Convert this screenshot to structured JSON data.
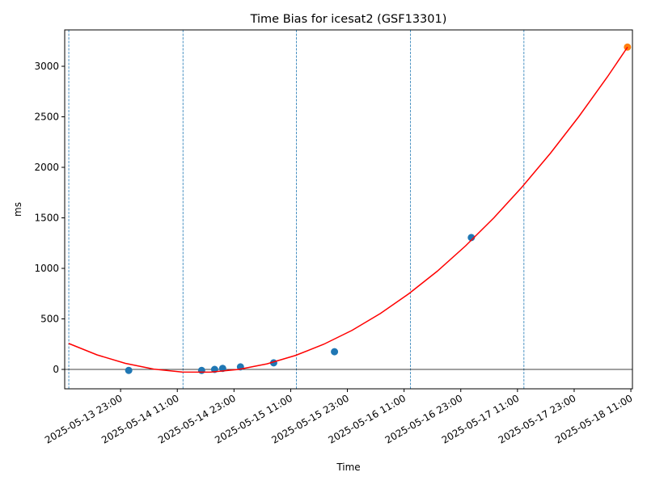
{
  "chart_data": {
    "type": "scatter",
    "title": "Time Bias for icesat2 (GSF13301)",
    "x_label": "Time",
    "y_label": "ms",
    "xlim": [
      "2025-05-13 11:10",
      "2025-05-18 11:20"
    ],
    "xticks": [
      "2025-05-13 23:00",
      "2025-05-14 11:00",
      "2025-05-14 23:00",
      "2025-05-15 11:00",
      "2025-05-15 23:00",
      "2025-05-16 11:00",
      "2025-05-16 23:00",
      "2025-05-17 11:00",
      "2025-05-17 23:00",
      "2025-05-18 11:00"
    ],
    "ylim": [
      -192,
      3360
    ],
    "yticks": [
      0,
      500,
      1000,
      1500,
      2000,
      2500,
      3000
    ],
    "hline": 0,
    "vlines": [
      "2025-05-13 12:02",
      "2025-05-14 12:12",
      "2025-05-15 12:12",
      "2025-05-16 12:22",
      "2025-05-17 12:22"
    ],
    "series": [
      {
        "color": "#1f77b4",
        "x": [
          "2025-05-14 00:43",
          "2025-05-14 16:09",
          "2025-05-14 18:54",
          "2025-05-14 20:36",
          "2025-05-15 00:22",
          "2025-05-15 07:24",
          "2025-05-15 20:16",
          "2025-05-17 01:14"
        ],
        "values": [
          -10,
          -10,
          0,
          10,
          25,
          65,
          175,
          1305
        ]
      },
      {
        "color": "#ff7f0e",
        "x": [
          "2025-05-18 10:17"
        ],
        "values": [
          3190
        ]
      },
      {
        "color": "#ff0000",
        "line": true,
        "x": [
          "2025-05-13 12:00",
          "2025-05-13 18:00",
          "2025-05-14 00:00",
          "2025-05-14 06:00",
          "2025-05-14 12:00",
          "2025-05-14 18:00",
          "2025-05-15 00:00",
          "2025-05-15 06:00",
          "2025-05-15 12:00",
          "2025-05-15 18:00",
          "2025-05-16 00:00",
          "2025-05-16 06:00",
          "2025-05-16 12:00",
          "2025-05-16 18:00",
          "2025-05-17 00:00",
          "2025-05-17 06:00",
          "2025-05-17 12:00",
          "2025-05-17 18:00",
          "2025-05-18 00:00",
          "2025-05-18 06:00",
          "2025-05-18 10:18"
        ],
        "values": [
          257,
          144,
          60,
          3,
          -26,
          -27,
          0,
          55,
          138,
          249,
          387,
          554,
          749,
          971,
          1222,
          1500,
          1807,
          2141,
          2503,
          2893,
          3190
        ]
      }
    ]
  }
}
